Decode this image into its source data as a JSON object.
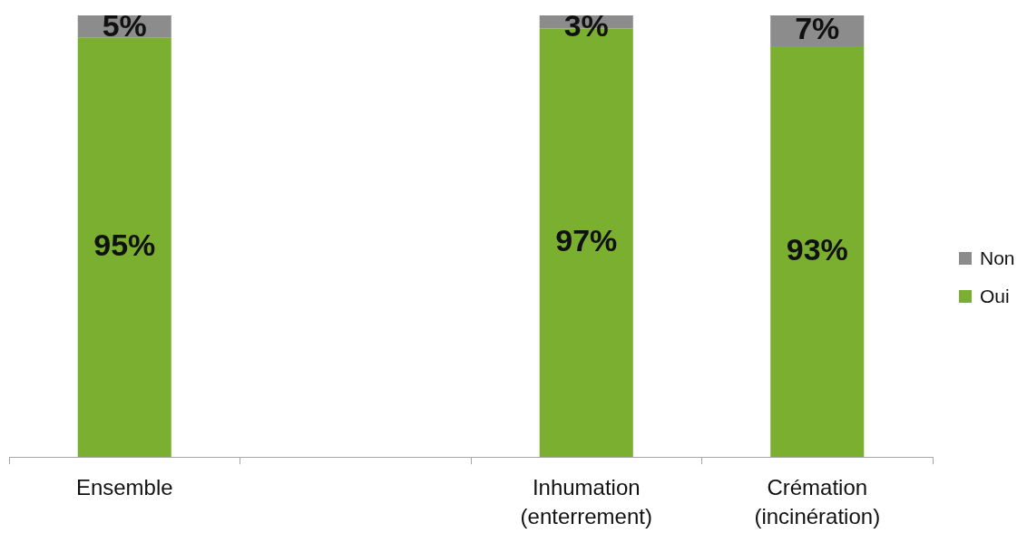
{
  "chart_data": {
    "type": "bar",
    "stacked": true,
    "categories": [
      "Ensemble",
      null,
      "Inhumation (enterrement)",
      "Crémation (incinération)"
    ],
    "series": [
      {
        "name": "Oui",
        "color": "#7aaf30",
        "values": [
          95,
          null,
          97,
          93
        ],
        "value_labels": [
          "95%",
          null,
          "97%",
          "93%"
        ]
      },
      {
        "name": "Non",
        "color": "#8c8c8c",
        "values": [
          5,
          null,
          3,
          7
        ],
        "value_labels": [
          "5%",
          null,
          "3%",
          "7%"
        ]
      }
    ],
    "ylim": [
      0,
      100
    ],
    "tick_labels": "x",
    "legend": "right"
  }
}
